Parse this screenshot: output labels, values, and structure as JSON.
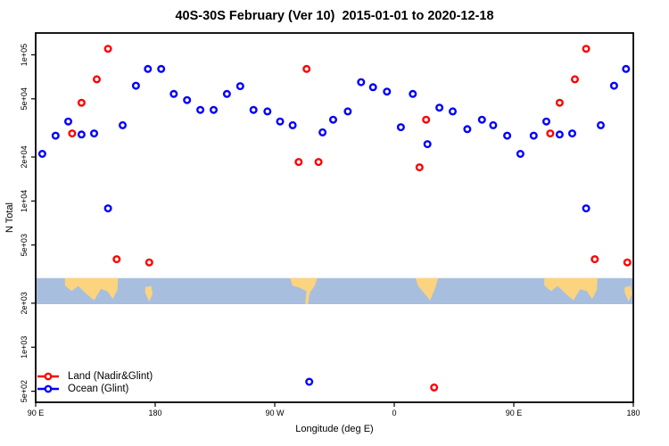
{
  "chart_data": {
    "type": "scatter",
    "title": "40S-30S February (Ver 10)  2015-01-01 to 2020-12-18",
    "xlabel": "Longitude (deg E)",
    "ylabel": "N Total",
    "grid": false,
    "legend_position": "bottom-left",
    "x_axis": {
      "description": "Longitude wrapping 450 degrees eastward starting at 90E",
      "range_deg": [
        90,
        540
      ],
      "ticks_deg": [
        90,
        180,
        270,
        360,
        450,
        540
      ],
      "tick_labels": [
        "90 E",
        "180",
        "90 W",
        "0",
        "90 E",
        "180"
      ]
    },
    "y_axis": {
      "scale": "log",
      "range": [
        420,
        141000
      ],
      "ticks": [
        500,
        1000,
        2000,
        5000,
        10000,
        20000,
        50000,
        100000
      ],
      "tick_labels": [
        "5e+02",
        "1e+03",
        "2e+03",
        "5e+03",
        "1e+04",
        "2e+04",
        "5e+04",
        "1e+05"
      ]
    },
    "series": [
      {
        "name": "Land (Nadir&Glint)",
        "color": "#ff0000",
        "marker": "open-circle",
        "points": [
          [
            117.5,
            29000
          ],
          [
            124.5,
            47000
          ],
          [
            136,
            68000
          ],
          [
            144.5,
            110000
          ],
          [
            151,
            4000
          ],
          [
            175.5,
            3800
          ],
          [
            288,
            18500
          ],
          [
            294,
            80000
          ],
          [
            303,
            18500
          ],
          [
            379,
            17000
          ],
          [
            384,
            36000
          ],
          [
            390,
            530
          ],
          [
            477.5,
            29000
          ],
          [
            484.5,
            47000
          ],
          [
            496,
            68000
          ],
          [
            504.5,
            110000
          ],
          [
            511,
            4000
          ],
          [
            535.5,
            3800
          ]
        ]
      },
      {
        "name": "Ocean (Glint)",
        "color": "#0000ff",
        "marker": "open-circle",
        "points": [
          [
            95,
            21000
          ],
          [
            105,
            28000
          ],
          [
            114.5,
            35000
          ],
          [
            124.5,
            28500
          ],
          [
            134,
            29000
          ],
          [
            144.5,
            8900
          ],
          [
            155.5,
            33000
          ],
          [
            165.5,
            61500
          ],
          [
            174.5,
            80000
          ],
          [
            184.5,
            80000
          ],
          [
            194,
            54000
          ],
          [
            204,
            49000
          ],
          [
            214,
            42000
          ],
          [
            224,
            42000
          ],
          [
            234,
            54000
          ],
          [
            244,
            61000
          ],
          [
            254,
            42000
          ],
          [
            264.5,
            41000
          ],
          [
            274,
            35000
          ],
          [
            283.5,
            33000
          ],
          [
            296,
            580
          ],
          [
            306,
            29500
          ],
          [
            314,
            36000
          ],
          [
            325,
            41000
          ],
          [
            335,
            65000
          ],
          [
            344,
            60000
          ],
          [
            354.5,
            56000
          ],
          [
            365,
            32000
          ],
          [
            374,
            54000
          ],
          [
            385,
            24500
          ],
          [
            394,
            43500
          ],
          [
            404,
            41000
          ],
          [
            415,
            31000
          ],
          [
            426,
            36000
          ],
          [
            434.5,
            33000
          ],
          [
            445,
            28000
          ],
          [
            455,
            21000
          ],
          [
            465,
            28000
          ],
          [
            474.5,
            35000
          ],
          [
            484.5,
            28500
          ],
          [
            494,
            29000
          ],
          [
            504.5,
            8900
          ],
          [
            515.5,
            33000
          ],
          [
            525.5,
            61500
          ],
          [
            534.5,
            80000
          ]
        ]
      }
    ],
    "map_band": {
      "y_range": [
        1970,
        2970
      ],
      "ocean_color": "#a8bedf",
      "land_color": "#fcd47f",
      "land_polygons": [
        {
          "name": "australia-west",
          "points": [
            [
              112,
              0
            ],
            [
              152,
              0
            ],
            [
              151.5,
              0.45
            ],
            [
              148,
              0.8
            ],
            [
              144,
              0.5
            ],
            [
              139,
              0.42
            ],
            [
              134,
              0.85
            ],
            [
              128,
              0.6
            ],
            [
              122,
              0.3
            ],
            [
              117,
              0.5
            ],
            [
              112,
              0.28
            ]
          ]
        },
        {
          "name": "new-zealand-west",
          "points": [
            [
              172.5,
              0.35
            ],
            [
              177,
              0.3
            ],
            [
              178,
              0.6
            ],
            [
              175.5,
              0.9
            ],
            [
              172.5,
              0.55
            ]
          ]
        },
        {
          "name": "south-america",
          "points": [
            [
              281.5,
              0
            ],
            [
              302,
              0
            ],
            [
              300,
              0.3
            ],
            [
              296.5,
              0.55
            ],
            [
              295,
              1
            ],
            [
              293,
              1
            ],
            [
              294,
              0.5
            ],
            [
              288,
              0.35
            ],
            [
              283.5,
              0.3
            ]
          ]
        },
        {
          "name": "south-africa",
          "points": [
            [
              376,
              0
            ],
            [
              393,
              0
            ],
            [
              391,
              0.35
            ],
            [
              387,
              0.85
            ],
            [
              382,
              0.55
            ],
            [
              378,
              0.3
            ]
          ]
        },
        {
          "name": "australia-east",
          "points": [
            [
              473,
              0
            ],
            [
              513,
              0
            ],
            [
              512.5,
              0.45
            ],
            [
              509,
              0.8
            ],
            [
              505,
              0.5
            ],
            [
              500,
              0.42
            ],
            [
              495,
              0.85
            ],
            [
              489,
              0.6
            ],
            [
              483,
              0.3
            ],
            [
              478,
              0.5
            ],
            [
              473,
              0.28
            ]
          ]
        },
        {
          "name": "new-zealand-east",
          "points": [
            [
              533.5,
              0.35
            ],
            [
              538,
              0.3
            ],
            [
              539,
              0.6
            ],
            [
              536.5,
              0.9
            ],
            [
              533.5,
              0.55
            ]
          ]
        }
      ]
    }
  }
}
